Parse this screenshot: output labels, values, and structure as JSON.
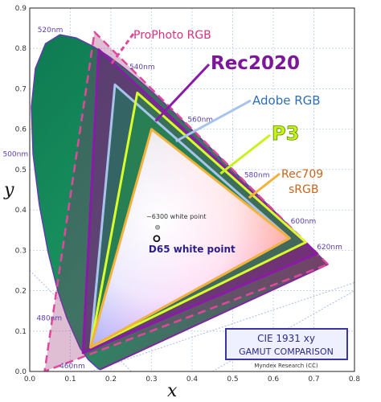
{
  "chart_data": {
    "type": "scatter",
    "title": "CIE 1931 xy",
    "subtitle": "GAMUT COMPARISON",
    "credit": "Myndex Research (CC)",
    "xlabel": "x",
    "ylabel": "y",
    "xlim": [
      0.0,
      0.8
    ],
    "ylim": [
      0.0,
      0.9
    ],
    "x_ticks": [
      "0.0",
      "0.1",
      "0.2",
      "0.3",
      "0.4",
      "0.5",
      "0.6",
      "0.7",
      "0.8"
    ],
    "y_ticks": [
      "0.0",
      "0.1",
      "0.2",
      "0.3",
      "0.4",
      "0.5",
      "0.6",
      "0.7",
      "0.8",
      "0.9"
    ],
    "grid": true,
    "spectral_locus": [
      [
        0.1741,
        0.005
      ],
      [
        0.1738,
        0.0049
      ],
      [
        0.173,
        0.0048
      ],
      [
        0.1721,
        0.0048
      ],
      [
        0.1666,
        0.0089
      ],
      [
        0.144,
        0.0297
      ],
      [
        0.1241,
        0.0578
      ],
      [
        0.0913,
        0.1327
      ],
      [
        0.0687,
        0.2007
      ],
      [
        0.0454,
        0.295
      ],
      [
        0.0235,
        0.4127
      ],
      [
        0.0082,
        0.5384
      ],
      [
        0.0039,
        0.6548
      ],
      [
        0.0139,
        0.7502
      ],
      [
        0.0389,
        0.812
      ],
      [
        0.0743,
        0.8338
      ],
      [
        0.1142,
        0.8262
      ],
      [
        0.1547,
        0.8059
      ],
      [
        0.1929,
        0.7816
      ],
      [
        0.2296,
        0.7543
      ],
      [
        0.2658,
        0.7243
      ],
      [
        0.3016,
        0.6923
      ],
      [
        0.3373,
        0.6589
      ],
      [
        0.3731,
        0.6245
      ],
      [
        0.4087,
        0.5896
      ],
      [
        0.4441,
        0.5547
      ],
      [
        0.4788,
        0.5202
      ],
      [
        0.5125,
        0.4866
      ],
      [
        0.5448,
        0.4544
      ],
      [
        0.5752,
        0.4242
      ],
      [
        0.6029,
        0.3965
      ],
      [
        0.627,
        0.3725
      ],
      [
        0.6482,
        0.3514
      ],
      [
        0.6658,
        0.334
      ],
      [
        0.6801,
        0.3197
      ],
      [
        0.6915,
        0.3083
      ],
      [
        0.7006,
        0.2993
      ],
      [
        0.7079,
        0.292
      ],
      [
        0.714,
        0.2859
      ],
      [
        0.719,
        0.2809
      ],
      [
        0.723,
        0.277
      ],
      [
        0.726,
        0.274
      ],
      [
        0.7283,
        0.2717
      ],
      [
        0.73,
        0.27
      ],
      [
        0.7311,
        0.2689
      ],
      [
        0.732,
        0.268
      ],
      [
        0.7327,
        0.2673
      ],
      [
        0.7334,
        0.2666
      ],
      [
        0.734,
        0.266
      ],
      [
        0.7344,
        0.2656
      ],
      [
        0.7346,
        0.2654
      ],
      [
        0.7347,
        0.2653
      ]
    ],
    "wavelength_labels": [
      {
        "text": "460nm",
        "x": 0.144,
        "y": 0.0297
      },
      {
        "text": "480nm",
        "x": 0.0913,
        "y": 0.1327
      },
      {
        "text": "500nm",
        "x": 0.0082,
        "y": 0.5384
      },
      {
        "text": "520nm",
        "x": 0.0743,
        "y": 0.8338
      },
      {
        "text": "540nm",
        "x": 0.2296,
        "y": 0.7543
      },
      {
        "text": "560nm",
        "x": 0.3731,
        "y": 0.6245
      },
      {
        "text": "580nm",
        "x": 0.5125,
        "y": 0.4866
      },
      {
        "text": "600nm",
        "x": 0.627,
        "y": 0.3725
      },
      {
        "text": "620nm",
        "x": 0.6915,
        "y": 0.3083
      }
    ],
    "series": [
      {
        "name": "ProPhoto RGB",
        "color": "#e0489a",
        "primaries": [
          [
            0.7347,
            0.2653
          ],
          [
            0.1596,
            0.8404
          ],
          [
            0.0366,
            0.0001
          ]
        ]
      },
      {
        "name": "Rec2020",
        "color": "#8a1aa8",
        "primaries": [
          [
            0.708,
            0.292
          ],
          [
            0.17,
            0.797
          ],
          [
            0.131,
            0.046
          ]
        ]
      },
      {
        "name": "Adobe RGB",
        "color": "#2e6fb5",
        "primaries": [
          [
            0.64,
            0.33
          ],
          [
            0.21,
            0.71
          ],
          [
            0.15,
            0.06
          ]
        ]
      },
      {
        "name": "P3",
        "color": "#9ed60f",
        "primaries": [
          [
            0.68,
            0.32
          ],
          [
            0.265,
            0.69
          ],
          [
            0.15,
            0.06
          ]
        ]
      },
      {
        "name": "Rec709 sRGB",
        "color": "#c8651e",
        "primaries": [
          [
            0.64,
            0.33
          ],
          [
            0.3,
            0.6
          ],
          [
            0.15,
            0.06
          ]
        ]
      }
    ],
    "white_points": [
      {
        "name": "~6300 white point",
        "x": 0.315,
        "y": 0.331
      },
      {
        "name": "D65 white point",
        "x": 0.3127,
        "y": 0.329
      }
    ]
  },
  "callouts": {
    "prophoto": "ProPhoto RGB",
    "rec2020": "Rec2020",
    "adobe": "Adobe RGB",
    "p3": "P3",
    "rec709": "Rec709",
    "srgb": "sRGB"
  },
  "colors": {
    "locus_fill": "#178a5a",
    "locus_stroke": "#5b3fb0",
    "grid": "#c9d6f0",
    "title_box": "#3a35a0"
  }
}
